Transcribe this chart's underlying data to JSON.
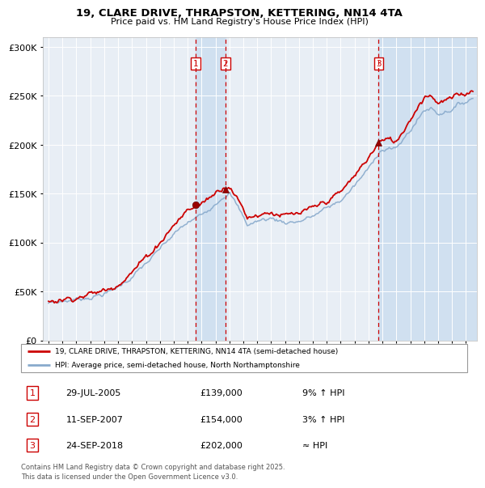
{
  "title1": "19, CLARE DRIVE, THRAPSTON, KETTERING, NN14 4TA",
  "title2": "Price paid vs. HM Land Registry's House Price Index (HPI)",
  "legend1": "19, CLARE DRIVE, THRAPSTON, KETTERING, NN14 4TA (semi-detached house)",
  "legend2": "HPI: Average price, semi-detached house, North Northamptonshire",
  "footer": "Contains HM Land Registry data © Crown copyright and database right 2025.\nThis data is licensed under the Open Government Licence v3.0.",
  "sale1_date": "29-JUL-2005",
  "sale1_price": 139000,
  "sale1_note": "9% ↑ HPI",
  "sale2_date": "11-SEP-2007",
  "sale2_price": 154000,
  "sale2_note": "3% ↑ HPI",
  "sale3_date": "24-SEP-2018",
  "sale3_price": 202000,
  "sale3_note": "≈ HPI",
  "sale1_x": 2005.57,
  "sale2_x": 2007.71,
  "sale3_x": 2018.73,
  "red_color": "#cc0000",
  "blue_color": "#88aacc",
  "bg_color": "#e8eef5",
  "shade_color": "#d0e0f0",
  "ylim_max": 310000,
  "xlim_min": 1994.6,
  "xlim_max": 2025.8
}
